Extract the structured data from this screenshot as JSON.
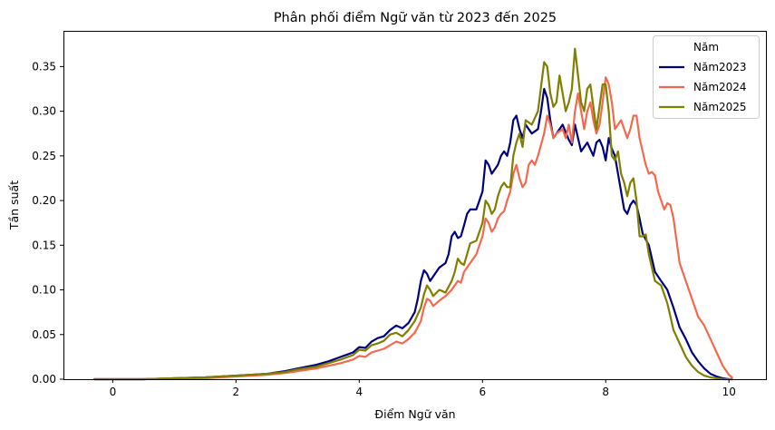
{
  "chart_data": {
    "type": "line",
    "title": "Phân phối điểm Ngữ văn từ 2023 đến 2025",
    "xlabel": "Điểm Ngữ văn",
    "ylabel": "Tần suất",
    "xlim": [
      -0.8,
      10.6
    ],
    "ylim": [
      0,
      0.39
    ],
    "xticks": [
      0,
      2,
      4,
      6,
      8,
      10
    ],
    "yticks": [
      0.0,
      0.05,
      0.1,
      0.15,
      0.2,
      0.25,
      0.3,
      0.35
    ],
    "ytick_labels": [
      "0.00",
      "0.05",
      "0.10",
      "0.15",
      "0.20",
      "0.25",
      "0.30",
      "0.35"
    ],
    "grid": false,
    "legend": {
      "title": "Năm",
      "position": "top-right"
    },
    "series": [
      {
        "name": "Năm2023",
        "color": "#00007f",
        "x": [
          -0.3,
          0,
          0.5,
          1,
          1.5,
          2,
          2.5,
          2.8,
          3,
          3.3,
          3.5,
          3.7,
          3.9,
          4,
          4.1,
          4.2,
          4.3,
          4.4,
          4.5,
          4.6,
          4.7,
          4.8,
          4.9,
          4.95,
          5,
          5.05,
          5.1,
          5.15,
          5.2,
          5.3,
          5.4,
          5.45,
          5.5,
          5.55,
          5.6,
          5.65,
          5.7,
          5.75,
          5.8,
          5.9,
          6,
          6.05,
          6.1,
          6.15,
          6.2,
          6.25,
          6.3,
          6.35,
          6.4,
          6.45,
          6.5,
          6.55,
          6.6,
          6.65,
          6.7,
          6.8,
          6.9,
          6.95,
          7,
          7.05,
          7.1,
          7.15,
          7.2,
          7.3,
          7.4,
          7.45,
          7.5,
          7.55,
          7.6,
          7.7,
          7.8,
          7.85,
          7.9,
          7.95,
          8,
          8.05,
          8.1,
          8.15,
          8.2,
          8.25,
          8.3,
          8.35,
          8.4,
          8.45,
          8.5,
          8.55,
          8.6,
          8.7,
          8.8,
          8.9,
          9,
          9.1,
          9.2,
          9.3,
          9.4,
          9.5,
          9.6,
          9.7,
          9.8,
          9.9,
          10,
          10.05
        ],
        "y": [
          0.0,
          0.0,
          0.0,
          0.001,
          0.002,
          0.004,
          0.006,
          0.009,
          0.012,
          0.016,
          0.02,
          0.025,
          0.03,
          0.036,
          0.035,
          0.042,
          0.046,
          0.048,
          0.055,
          0.06,
          0.057,
          0.063,
          0.075,
          0.09,
          0.11,
          0.122,
          0.118,
          0.11,
          0.115,
          0.125,
          0.13,
          0.14,
          0.16,
          0.165,
          0.158,
          0.16,
          0.172,
          0.185,
          0.19,
          0.19,
          0.21,
          0.245,
          0.24,
          0.23,
          0.235,
          0.24,
          0.25,
          0.255,
          0.25,
          0.265,
          0.29,
          0.295,
          0.28,
          0.27,
          0.285,
          0.275,
          0.28,
          0.3,
          0.325,
          0.315,
          0.29,
          0.27,
          0.275,
          0.285,
          0.268,
          0.262,
          0.285,
          0.27,
          0.255,
          0.265,
          0.25,
          0.265,
          0.268,
          0.26,
          0.245,
          0.27,
          0.258,
          0.25,
          0.23,
          0.21,
          0.19,
          0.185,
          0.195,
          0.2,
          0.195,
          0.18,
          0.163,
          0.15,
          0.12,
          0.11,
          0.1,
          0.08,
          0.058,
          0.045,
          0.03,
          0.02,
          0.012,
          0.006,
          0.003,
          0.001,
          0.0,
          0.0
        ]
      },
      {
        "name": "Năm2024",
        "color": "#f4694d",
        "x": [
          -0.3,
          0,
          0.5,
          1,
          1.5,
          2,
          2.5,
          2.8,
          3,
          3.3,
          3.5,
          3.7,
          3.9,
          4,
          4.1,
          4.2,
          4.3,
          4.4,
          4.5,
          4.6,
          4.7,
          4.8,
          4.9,
          5,
          5.05,
          5.1,
          5.15,
          5.2,
          5.3,
          5.4,
          5.5,
          5.55,
          5.6,
          5.65,
          5.7,
          5.8,
          5.9,
          6,
          6.05,
          6.1,
          6.15,
          6.2,
          6.25,
          6.3,
          6.35,
          6.4,
          6.45,
          6.5,
          6.55,
          6.6,
          6.65,
          6.7,
          6.75,
          6.8,
          6.85,
          6.9,
          7,
          7.05,
          7.1,
          7.15,
          7.2,
          7.3,
          7.35,
          7.4,
          7.45,
          7.5,
          7.55,
          7.6,
          7.65,
          7.7,
          7.75,
          7.8,
          7.85,
          7.9,
          7.95,
          8,
          8.05,
          8.1,
          8.15,
          8.2,
          8.25,
          8.3,
          8.35,
          8.4,
          8.45,
          8.5,
          8.55,
          8.6,
          8.65,
          8.7,
          8.75,
          8.8,
          8.85,
          8.9,
          8.95,
          9,
          9.05,
          9.1,
          9.2,
          9.3,
          9.4,
          9.5,
          9.6,
          9.7,
          9.8,
          9.9,
          10,
          10.05
        ],
        "y": [
          0.0,
          0.0,
          0.0,
          0.001,
          0.001,
          0.003,
          0.005,
          0.007,
          0.009,
          0.012,
          0.015,
          0.018,
          0.022,
          0.026,
          0.025,
          0.03,
          0.032,
          0.034,
          0.038,
          0.042,
          0.04,
          0.045,
          0.052,
          0.065,
          0.08,
          0.09,
          0.088,
          0.082,
          0.088,
          0.093,
          0.1,
          0.105,
          0.11,
          0.108,
          0.12,
          0.13,
          0.14,
          0.16,
          0.18,
          0.175,
          0.165,
          0.17,
          0.18,
          0.185,
          0.188,
          0.2,
          0.21,
          0.23,
          0.24,
          0.225,
          0.215,
          0.22,
          0.24,
          0.245,
          0.24,
          0.25,
          0.275,
          0.295,
          0.285,
          0.27,
          0.275,
          0.28,
          0.27,
          0.285,
          0.265,
          0.3,
          0.32,
          0.3,
          0.28,
          0.3,
          0.31,
          0.29,
          0.275,
          0.285,
          0.31,
          0.338,
          0.33,
          0.31,
          0.28,
          0.285,
          0.29,
          0.28,
          0.27,
          0.28,
          0.295,
          0.295,
          0.27,
          0.255,
          0.24,
          0.23,
          0.232,
          0.228,
          0.21,
          0.2,
          0.19,
          0.197,
          0.195,
          0.18,
          0.13,
          0.11,
          0.09,
          0.07,
          0.06,
          0.045,
          0.03,
          0.015,
          0.005,
          0.002
        ]
      },
      {
        "name": "Năm2025",
        "color": "#7f7f00",
        "x": [
          -0.3,
          0,
          0.5,
          1,
          1.5,
          2,
          2.5,
          2.8,
          3,
          3.3,
          3.5,
          3.7,
          3.9,
          4,
          4.1,
          4.2,
          4.3,
          4.4,
          4.5,
          4.6,
          4.7,
          4.8,
          4.9,
          5,
          5.05,
          5.1,
          5.15,
          5.2,
          5.3,
          5.4,
          5.5,
          5.55,
          5.6,
          5.65,
          5.7,
          5.8,
          5.9,
          6,
          6.05,
          6.1,
          6.15,
          6.2,
          6.25,
          6.3,
          6.35,
          6.4,
          6.45,
          6.5,
          6.55,
          6.6,
          6.65,
          6.7,
          6.8,
          6.9,
          7,
          7.05,
          7.1,
          7.15,
          7.2,
          7.25,
          7.3,
          7.35,
          7.4,
          7.45,
          7.5,
          7.55,
          7.6,
          7.65,
          7.7,
          7.75,
          7.8,
          7.85,
          7.9,
          7.95,
          8,
          8.05,
          8.1,
          8.15,
          8.2,
          8.25,
          8.3,
          8.35,
          8.4,
          8.45,
          8.5,
          8.55,
          8.6,
          8.65,
          8.7,
          8.8,
          8.9,
          9,
          9.1,
          9.2,
          9.3,
          9.4,
          9.5,
          9.6,
          9.7,
          9.8,
          9.9,
          10,
          10.05
        ],
        "y": [
          0.0,
          0.0,
          0.0,
          0.001,
          0.002,
          0.004,
          0.006,
          0.008,
          0.011,
          0.014,
          0.018,
          0.022,
          0.027,
          0.033,
          0.032,
          0.038,
          0.04,
          0.043,
          0.05,
          0.052,
          0.048,
          0.055,
          0.065,
          0.08,
          0.095,
          0.105,
          0.1,
          0.093,
          0.1,
          0.097,
          0.11,
          0.12,
          0.135,
          0.13,
          0.128,
          0.152,
          0.155,
          0.175,
          0.2,
          0.195,
          0.185,
          0.19,
          0.205,
          0.215,
          0.22,
          0.215,
          0.215,
          0.25,
          0.265,
          0.275,
          0.26,
          0.29,
          0.285,
          0.3,
          0.355,
          0.35,
          0.32,
          0.305,
          0.31,
          0.34,
          0.32,
          0.3,
          0.31,
          0.325,
          0.37,
          0.34,
          0.31,
          0.3,
          0.325,
          0.33,
          0.305,
          0.28,
          0.305,
          0.33,
          0.33,
          0.3,
          0.25,
          0.245,
          0.255,
          0.23,
          0.22,
          0.205,
          0.22,
          0.225,
          0.2,
          0.16,
          0.16,
          0.162,
          0.14,
          0.11,
          0.105,
          0.085,
          0.055,
          0.04,
          0.025,
          0.015,
          0.008,
          0.004,
          0.002,
          0.001,
          0.0,
          0.0,
          0.0
        ]
      }
    ]
  }
}
